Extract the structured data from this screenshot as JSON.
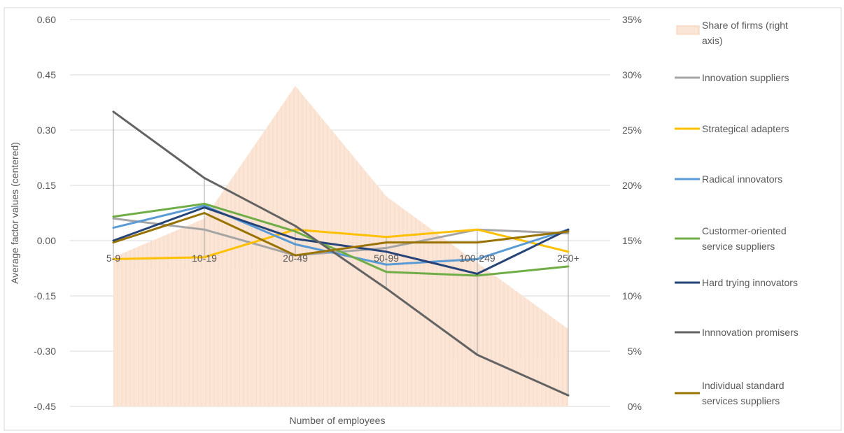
{
  "chart_data": {
    "type": "line",
    "categories": [
      "5-9",
      "10-19",
      "20-49",
      "50-99",
      "100-249",
      "250+"
    ],
    "xlabel": "Number of employees",
    "ylabel": "Average factor values (centered)",
    "ylim": [
      -0.45,
      0.6
    ],
    "yticks": [
      "0.60",
      "0.45",
      "0.30",
      "0.15",
      "0.00",
      "-0.15",
      "-0.30",
      "-0.45"
    ],
    "y2lim": [
      0,
      35
    ],
    "y2ticks": [
      "35%",
      "30%",
      "25%",
      "20%",
      "15%",
      "10%",
      "5%",
      "0%"
    ],
    "grid": true,
    "legend_position": "right",
    "area": {
      "name": "Share of firms (right axis)",
      "legend_lines": [
        "Share of firms (right",
        "axis)"
      ],
      "values": [
        13.5,
        17.0,
        29.0,
        19.0,
        13.0,
        7.0
      ],
      "fill": "#fbe5d6",
      "stroke": "#f8cbad"
    },
    "series": [
      {
        "name": "Innovation suppliers",
        "legend_lines": [
          "Innovation suppliers"
        ],
        "color": "#a5a5a5",
        "values": [
          0.06,
          0.03,
          -0.04,
          -0.02,
          0.03,
          0.02
        ]
      },
      {
        "name": "Strategical adapters",
        "legend_lines": [
          "Strategical adapters"
        ],
        "color": "#ffc000",
        "values": [
          -0.05,
          -0.045,
          0.03,
          0.01,
          0.03,
          -0.03
        ]
      },
      {
        "name": "Radical innovators",
        "legend_lines": [
          "Radical innovators"
        ],
        "color": "#5b9bd5",
        "values": [
          0.035,
          0.095,
          -0.01,
          -0.065,
          -0.05,
          0.03
        ]
      },
      {
        "name": "Custormer-oriented service suppliers",
        "legend_lines": [
          "Custormer-oriented",
          "service suppliers"
        ],
        "color": "#70ad47",
        "values": [
          0.065,
          0.1,
          0.025,
          -0.085,
          -0.095,
          -0.07
        ]
      },
      {
        "name": "Hard trying innovators",
        "legend_lines": [
          "Hard trying innovators"
        ],
        "color": "#264478",
        "values": [
          0.0,
          0.09,
          0.005,
          -0.03,
          -0.09,
          0.03
        ]
      },
      {
        "name": "Innnovation promisers",
        "legend_lines": [
          "Innnovation promisers"
        ],
        "color": "#636363",
        "values": [
          0.35,
          0.17,
          0.04,
          -0.13,
          -0.31,
          -0.42
        ]
      },
      {
        "name": "Individual standard services suppliers",
        "legend_lines": [
          "Individual standard",
          "services suppliers"
        ],
        "color": "#997300",
        "values": [
          -0.005,
          0.075,
          -0.04,
          -0.005,
          -0.005,
          0.025
        ]
      }
    ]
  }
}
